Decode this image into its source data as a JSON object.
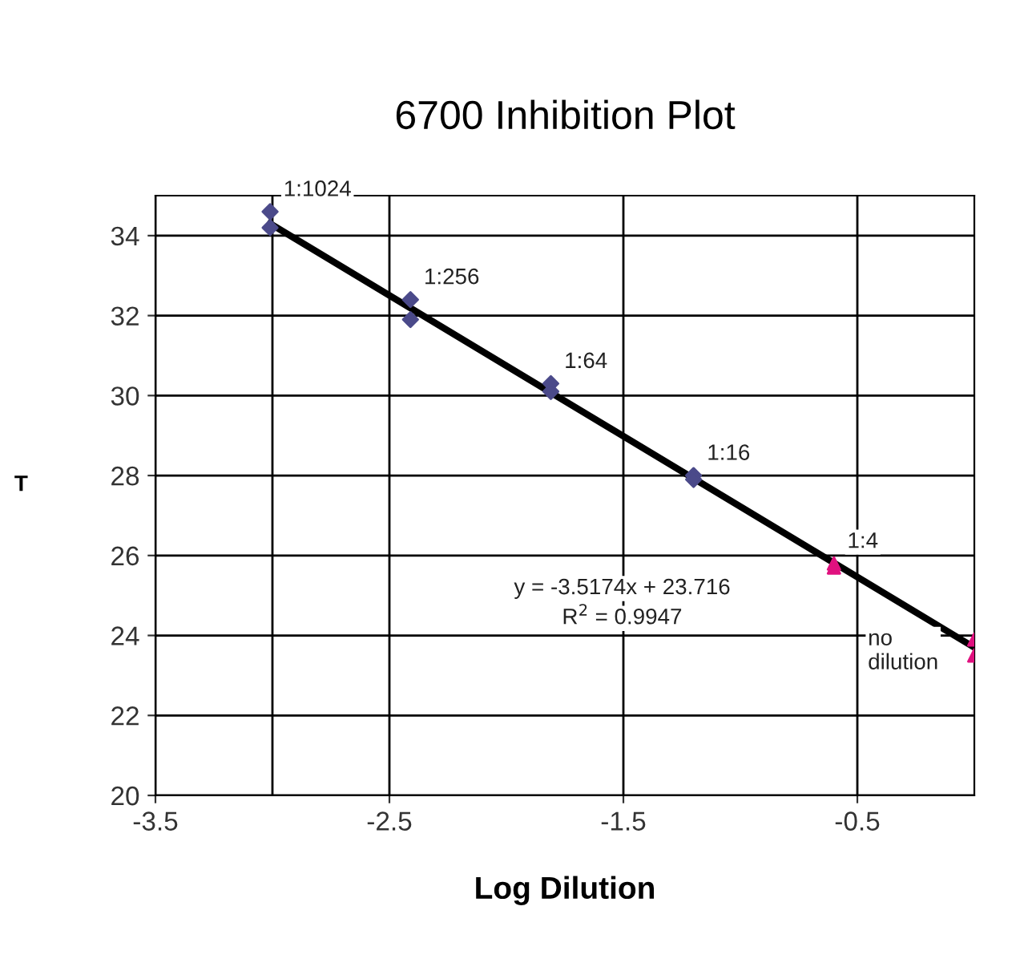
{
  "chart_data": {
    "type": "scatter",
    "title": "6700 Inhibition Plot",
    "xlabel": "Log Dilution",
    "ylabel": "T",
    "xlim": [
      -3.5,
      0
    ],
    "xticks": [
      -3.5,
      -2.5,
      -1.5,
      -0.5
    ],
    "ylim": [
      20,
      35
    ],
    "yticks": [
      20,
      22,
      24,
      26,
      28,
      30,
      32,
      34
    ],
    "grid": true,
    "legend": false,
    "series": [
      {
        "color": "#4b4a8a",
        "marker": "diamond",
        "x": [
          -3.01,
          -3.01,
          -2.41,
          -2.41,
          -1.81,
          -1.81,
          -1.2,
          -1.2
        ],
        "values": [
          34.6,
          34.2,
          32.4,
          31.9,
          30.3,
          30.1,
          28.0,
          27.9
        ]
      },
      {
        "color": "#e0117f",
        "marker": "triangle",
        "x": [
          -0.6,
          -0.6,
          0,
          0
        ],
        "values": [
          25.8,
          25.7,
          23.9,
          23.5
        ]
      },
      {
        "type": "line",
        "color": "#000000",
        "marker": "none",
        "x": [
          -3.01,
          0
        ],
        "values": [
          34.3,
          23.7
        ]
      }
    ],
    "ref_lines": [
      {
        "axis": "x",
        "value": -3,
        "color": "#000000"
      }
    ],
    "annotations": [
      {
        "text": "1:1024",
        "x": -3.01,
        "y": 34.6
      },
      {
        "text": "1:256",
        "x": -2.41,
        "y": 32.4
      },
      {
        "text": "1:64",
        "x": -1.81,
        "y": 30.3
      },
      {
        "text": "1:16",
        "x": -1.2,
        "y": 28.0
      },
      {
        "text": "1:4",
        "x": -0.6,
        "y": 25.8
      },
      "no\ndilution",
      "y = -3.5174x + 23.716",
      "R$^{2}$ = 0.9947"
    ]
  }
}
